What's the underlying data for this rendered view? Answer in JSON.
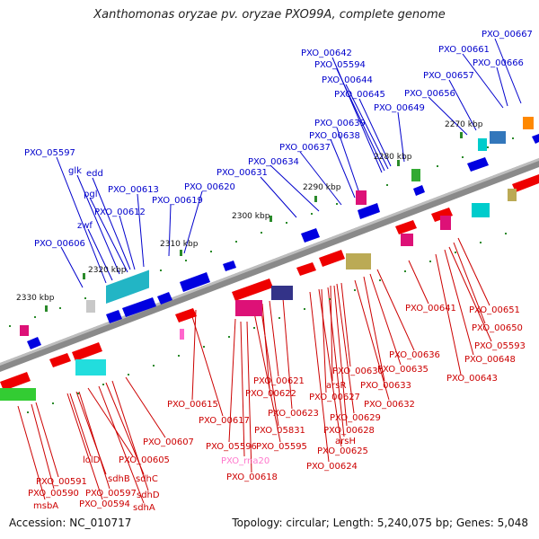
{
  "title": "Xanthomonas oryzae pv. oryzae PXO99A, complete genome",
  "footer": {
    "accession": "Accession: NC_010717",
    "summary": "Topology: circular; Length: 5,240,075 bp; Genes: 5,048"
  },
  "colors": {
    "forward_label": "#0000cc",
    "reverse_label": "#cc0000",
    "rna_label": "#ff77cc",
    "backbone": "#7a7a7a",
    "tick": "#2a8a2a"
  },
  "ticks": [
    "2330 kbp",
    "2320 kbp",
    "2310 kbp",
    "2300 kbp",
    "2290 kbp",
    "2280 kbp",
    "2270 kbp"
  ],
  "labels_top": [
    "PXO_05597",
    "glk",
    "edd",
    "pgl",
    "PXO_00613",
    "PXO_00612",
    "PXO_00619",
    "PXO_00620",
    "zwf",
    "PXO_00606",
    "PXO_00631",
    "PXO_00634",
    "PXO_00637",
    "PXO_00638",
    "PXO_00639",
    "PXO_00642",
    "PXO_05594",
    "PXO_00644",
    "PXO_00645",
    "PXO_00649",
    "PXO_00656",
    "PXO_00657",
    "PXO_00661",
    "PXO_00666",
    "PXO_00667"
  ],
  "labels_bottom": [
    "PXO_00641",
    "PXO_00651",
    "PXO_00650",
    "PXO_05593",
    "PXO_00648",
    "PXO_00643",
    "PXO_00636",
    "PXO_00635",
    "PXO_00630",
    "PXO_00633",
    "PXO_00632",
    "arsR",
    "PXO_00627",
    "PXO_00629",
    "PXO_00628",
    "arsH",
    "PXO_00625",
    "PXO_00624",
    "PXO_00621",
    "PXO_00622",
    "PXO_00623",
    "PXO_05831",
    "PXO_05595",
    "PXO_00615",
    "PXO_00617",
    "PXO_05596",
    "PXO_rna20",
    "PXO_00618",
    "PXO_00607",
    "lolD",
    "PXO_00605",
    "sdhB",
    "sdhC",
    "sdhD",
    "sdhA",
    "PXO_00591",
    "PXO_00590",
    "PXO_00597",
    "PXO_00594",
    "msbA"
  ]
}
